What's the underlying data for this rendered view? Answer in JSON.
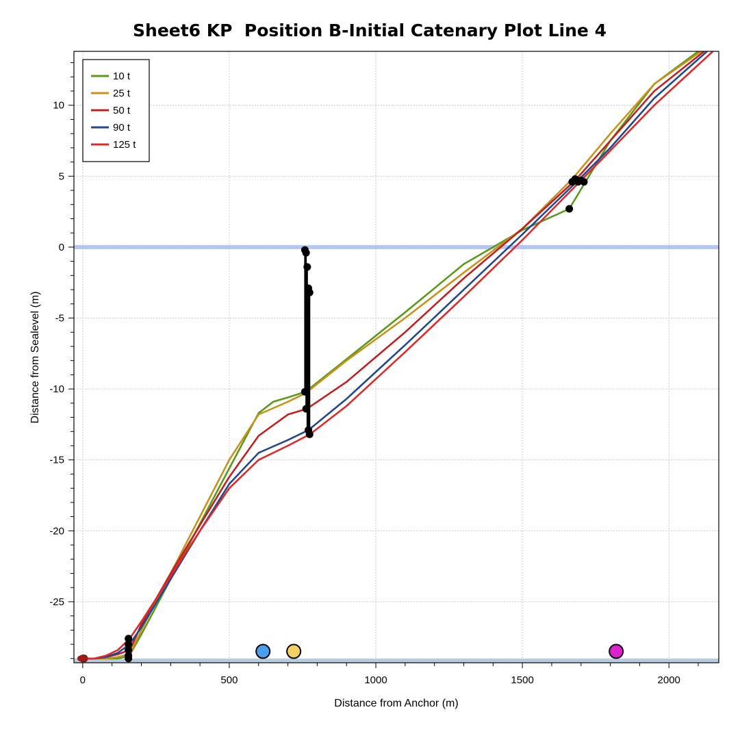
{
  "chart_data": {
    "type": "line",
    "title": "Sheet6 KP  Position B-Initial Catenary Plot Line 4",
    "xlabel": "Distance from Anchor (m)",
    "ylabel": "Distance from Sealevel (m)",
    "xlim": [
      -30,
      2170
    ],
    "ylim": [
      -29.3,
      13.8
    ],
    "xticks": [
      0,
      500,
      1000,
      1500,
      2000
    ],
    "yticks": [
      10,
      5,
      0,
      -5,
      -10,
      -15,
      -20,
      -25
    ],
    "grid": true,
    "legend_position": "top-left",
    "sealevel": 0,
    "seabed": -29.0,
    "series": [
      {
        "name": "10 t",
        "color": "#5a9a1a",
        "points": [
          [
            0,
            -29
          ],
          [
            40,
            -29
          ],
          [
            80,
            -29
          ],
          [
            120,
            -29
          ],
          [
            140,
            -28.9
          ],
          [
            160,
            -28.8
          ],
          [
            170,
            -28.4
          ],
          [
            200,
            -27.3
          ],
          [
            300,
            -23.4
          ],
          [
            400,
            -19.5
          ],
          [
            500,
            -15.6
          ],
          [
            600,
            -11.7
          ],
          [
            650,
            -10.9
          ],
          [
            700,
            -10.6
          ],
          [
            760,
            -10.2
          ],
          [
            900,
            -7.9
          ],
          [
            1100,
            -4.6
          ],
          [
            1300,
            -1.2
          ],
          [
            1500,
            1.2
          ],
          [
            1660,
            2.7
          ],
          [
            1800,
            7.5
          ],
          [
            1950,
            11.5
          ],
          [
            2100,
            13.8
          ]
        ]
      },
      {
        "name": "25 t",
        "color": "#c8921a",
        "points": [
          [
            0,
            -29
          ],
          [
            40,
            -29
          ],
          [
            80,
            -29
          ],
          [
            120,
            -28.9
          ],
          [
            160,
            -28.7
          ],
          [
            170,
            -28.3
          ],
          [
            200,
            -27.0
          ],
          [
            300,
            -23.0
          ],
          [
            400,
            -19.0
          ],
          [
            500,
            -15.0
          ],
          [
            600,
            -11.8
          ],
          [
            700,
            -10.9
          ],
          [
            760,
            -10.3
          ],
          [
            900,
            -8.0
          ],
          [
            1100,
            -5.0
          ],
          [
            1300,
            -1.8
          ],
          [
            1500,
            1.3
          ],
          [
            1670,
            4.8
          ],
          [
            1800,
            8.0
          ],
          [
            1950,
            11.5
          ],
          [
            2110,
            13.8
          ]
        ]
      },
      {
        "name": "50 t",
        "color": "#c02020",
        "points": [
          [
            0,
            -29
          ],
          [
            40,
            -29
          ],
          [
            80,
            -28.9
          ],
          [
            120,
            -28.7
          ],
          [
            160,
            -28.4
          ],
          [
            170,
            -28.0
          ],
          [
            200,
            -26.6
          ],
          [
            300,
            -23.0
          ],
          [
            400,
            -19.6
          ],
          [
            500,
            -16.2
          ],
          [
            600,
            -13.3
          ],
          [
            700,
            -11.8
          ],
          [
            765,
            -11.4
          ],
          [
            900,
            -9.5
          ],
          [
            1100,
            -6.0
          ],
          [
            1300,
            -2.2
          ],
          [
            1500,
            1.3
          ],
          [
            1680,
            4.7
          ],
          [
            1800,
            7.5
          ],
          [
            1950,
            11.0
          ],
          [
            2120,
            13.8
          ]
        ]
      },
      {
        "name": "90 t",
        "color": "#204890",
        "points": [
          [
            0,
            -29
          ],
          [
            40,
            -29
          ],
          [
            80,
            -28.9
          ],
          [
            120,
            -28.6
          ],
          [
            160,
            -28.0
          ],
          [
            170,
            -27.7
          ],
          [
            200,
            -26.8
          ],
          [
            300,
            -23.4
          ],
          [
            400,
            -20.0
          ],
          [
            500,
            -16.7
          ],
          [
            600,
            -14.5
          ],
          [
            700,
            -13.6
          ],
          [
            770,
            -12.9
          ],
          [
            900,
            -10.7
          ],
          [
            1100,
            -6.9
          ],
          [
            1300,
            -3.0
          ],
          [
            1500,
            0.9
          ],
          [
            1690,
            4.7
          ],
          [
            1800,
            7.0
          ],
          [
            1950,
            10.5
          ],
          [
            2130,
            13.8
          ]
        ]
      },
      {
        "name": "125 t",
        "color": "#e02828",
        "points": [
          [
            0,
            -29
          ],
          [
            40,
            -29
          ],
          [
            80,
            -28.8
          ],
          [
            120,
            -28.4
          ],
          [
            160,
            -27.6
          ],
          [
            170,
            -27.3
          ],
          [
            200,
            -26.4
          ],
          [
            300,
            -23.2
          ],
          [
            400,
            -20.0
          ],
          [
            500,
            -17.0
          ],
          [
            600,
            -15.0
          ],
          [
            700,
            -14.0
          ],
          [
            775,
            -13.2
          ],
          [
            900,
            -11.2
          ],
          [
            1100,
            -7.4
          ],
          [
            1300,
            -3.5
          ],
          [
            1500,
            0.5
          ],
          [
            1700,
            4.7
          ],
          [
            1800,
            6.8
          ],
          [
            1950,
            10.0
          ],
          [
            2150,
            13.8
          ]
        ]
      }
    ],
    "riser": {
      "color": "#000000",
      "segments": [
        [
          758,
          -0.2,
          758,
          -10.2
        ],
        [
          762,
          -0.4,
          762,
          -11.4
        ],
        [
          766,
          -1.4,
          766,
          -12.9
        ],
        [
          770,
          -2.9,
          770,
          -13.2
        ],
        [
          774,
          -3.2,
          774,
          -13.2
        ]
      ]
    },
    "black_markers": [
      [
        758,
        -0.2
      ],
      [
        762,
        -0.4
      ],
      [
        766,
        -1.4
      ],
      [
        770,
        -2.9
      ],
      [
        774,
        -3.2
      ],
      [
        758,
        -10.2
      ],
      [
        762,
        -11.4
      ],
      [
        770,
        -12.9
      ],
      [
        774,
        -13.2
      ],
      [
        1660,
        2.7
      ],
      [
        1670,
        4.6
      ],
      [
        1680,
        4.8
      ],
      [
        1690,
        4.6
      ],
      [
        1700,
        4.7
      ],
      [
        1710,
        4.6
      ],
      [
        156,
        -27.6
      ],
      [
        156,
        -28.0
      ],
      [
        156,
        -28.4
      ],
      [
        156,
        -28.8
      ],
      [
        156,
        -29.0
      ],
      [
        0,
        -29.0
      ],
      [
        5,
        -29.0
      ]
    ],
    "buoys": [
      {
        "x": 615,
        "y": -28.5,
        "color": "#4a9ef0"
      },
      {
        "x": 720,
        "y": -28.5,
        "color": "#f5d060"
      },
      {
        "x": 1820,
        "y": -28.5,
        "color": "#e020d0"
      }
    ],
    "anchor_marker": {
      "x": 0,
      "y": -29.0,
      "color": "#a01818"
    }
  }
}
